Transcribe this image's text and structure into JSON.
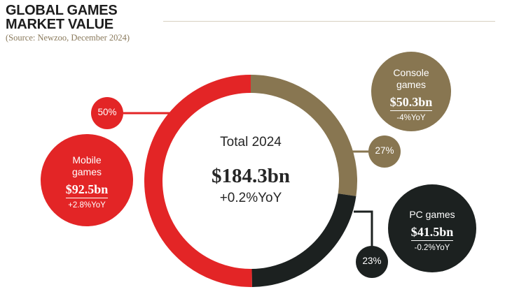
{
  "header": {
    "title_line1": "GLOBAL GAMES",
    "title_line2": "MARKET VALUE",
    "source": "(Source: Newzoo, December 2024)"
  },
  "center": {
    "title": "Total 2024",
    "value": "$184.3bn",
    "yoy": "+0.2%YoY"
  },
  "segments": [
    {
      "key": "console",
      "name_lines": [
        "Console",
        "games"
      ],
      "value": "$50.3bn",
      "yoy": "-4%YoY",
      "pct": "27%",
      "color": "#887651",
      "text_color": "#ffffff",
      "pct_text_color": "#ffffff"
    },
    {
      "key": "pc",
      "name_lines": [
        "PC games"
      ],
      "value": "$41.5bn",
      "yoy": "-0.2%YoY",
      "pct": "23%",
      "color": "#1c2120",
      "text_color": "#ffffff",
      "pct_text_color": "#ffffff"
    },
    {
      "key": "mobile",
      "name_lines": [
        "Mobile",
        "games"
      ],
      "value": "$92.5bn",
      "yoy": "+2.8%YoY",
      "pct": "50%",
      "color": "#e32526",
      "text_color": "#ffffff",
      "pct_text_color": "#ffffff"
    }
  ],
  "chart_data": {
    "type": "pie",
    "title": "GLOBAL GAMES MARKET VALUE",
    "subtitle": "(Source: Newzoo, December 2024)",
    "total": 184.3,
    "categories": [
      "Console games",
      "PC games",
      "Mobile games"
    ],
    "values": [
      50.3,
      41.5,
      92.5
    ],
    "shares": [
      27,
      23,
      50
    ],
    "yoy": [
      "-4%",
      "-0.2%",
      "+2.8%"
    ],
    "colors": [
      "#887651",
      "#1c2120",
      "#e32526"
    ]
  }
}
